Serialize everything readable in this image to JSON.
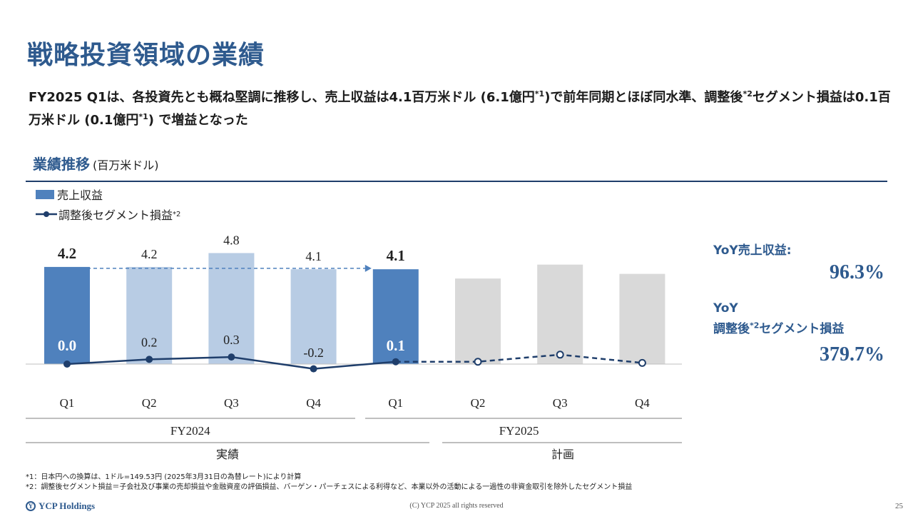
{
  "header": {
    "title": "戦略投資領域の業績",
    "lead_part1": "FY2025 Q1は、各投資先とも概ね堅調に推移し、売上収益は4.1百万米ドル (6.1億円",
    "lead_sup1": "*1",
    "lead_part2": ")で前年同期とほぼ同水準、調整後",
    "lead_sup2": "*2",
    "lead_part3": "セグメント損益は0.1百万米ドル (0.1億円",
    "lead_sup3": "*1",
    "lead_part4": ") で増益となった"
  },
  "section": {
    "title": "業績推移",
    "unit": "(百万米ドル)"
  },
  "legend": {
    "revenue_label": "売上収益",
    "profit_label": "調整後セグメント損益",
    "profit_sup": "*2"
  },
  "chart_data": {
    "type": "bar",
    "categories": [
      "Q1",
      "Q2",
      "Q3",
      "Q4",
      "Q1",
      "Q2",
      "Q3",
      "Q4"
    ],
    "fiscal_years": [
      {
        "label": "FY2024",
        "span": [
          0,
          3
        ]
      },
      {
        "label": "FY2025",
        "span": [
          4,
          7
        ]
      }
    ],
    "phases": [
      {
        "label": "実績",
        "span": [
          0,
          4
        ]
      },
      {
        "label": "計画",
        "span": [
          5,
          7
        ]
      }
    ],
    "series": [
      {
        "name": "売上収益",
        "kind": "bar",
        "values": [
          4.2,
          4.2,
          4.8,
          4.1,
          4.1,
          3.7,
          4.3,
          3.9
        ],
        "labels": [
          "4.2",
          "4.2",
          "4.8",
          "4.1",
          "4.1",
          "",
          "",
          ""
        ],
        "label_bold": [
          true,
          false,
          false,
          false,
          true,
          false,
          false,
          false
        ],
        "status": [
          "actual",
          "actual",
          "actual",
          "actual",
          "actual",
          "plan",
          "plan",
          "plan"
        ]
      },
      {
        "name": "調整後セグメント損益",
        "kind": "line",
        "values": [
          0.0,
          0.2,
          0.3,
          -0.2,
          0.1,
          0.1,
          0.4,
          0.05
        ],
        "labels": [
          "0.0",
          "0.2",
          "0.3",
          "-0.2",
          "0.1",
          "",
          "",
          ""
        ],
        "label_bold": [
          true,
          false,
          false,
          false,
          true,
          false,
          false,
          false
        ],
        "status": [
          "actual",
          "actual",
          "actual",
          "actual",
          "actual",
          "plan",
          "plan",
          "plan"
        ]
      }
    ],
    "comparison_arrow": {
      "from_index": 0,
      "to_index": 4
    },
    "colors": {
      "bar_highlight": "#4f81bd",
      "bar_actual": "#b8cce4",
      "bar_plan": "#d9d9d9",
      "line": "#1f3e6b"
    },
    "xlabel": "",
    "ylabel": ""
  },
  "yoy": {
    "revenue_label": "YoY売上収益:",
    "revenue_value": "96.3%",
    "profit_label_line1": "YoY",
    "profit_label_line2a": "調整後",
    "profit_sup": "*2",
    "profit_label_line2b": "セグメント損益",
    "profit_value": "379.7%"
  },
  "notes": {
    "note1": "*1：日本円への換算は、1ドル=149.53円 (2025年3月31日の為替レート)により計算",
    "note2": "*2：調整後セグメント損益＝子会社及び事業の売却損益や金融資産の評価損益、バーゲン・パーチェスによる利得など、本業以外の活動による一過性の非資金取引を除外したセグメント損益"
  },
  "footer": {
    "logo_text": "YCP Holdings",
    "copyright": "(C) YCP 2025 all rights reserved",
    "page_number": "25"
  }
}
